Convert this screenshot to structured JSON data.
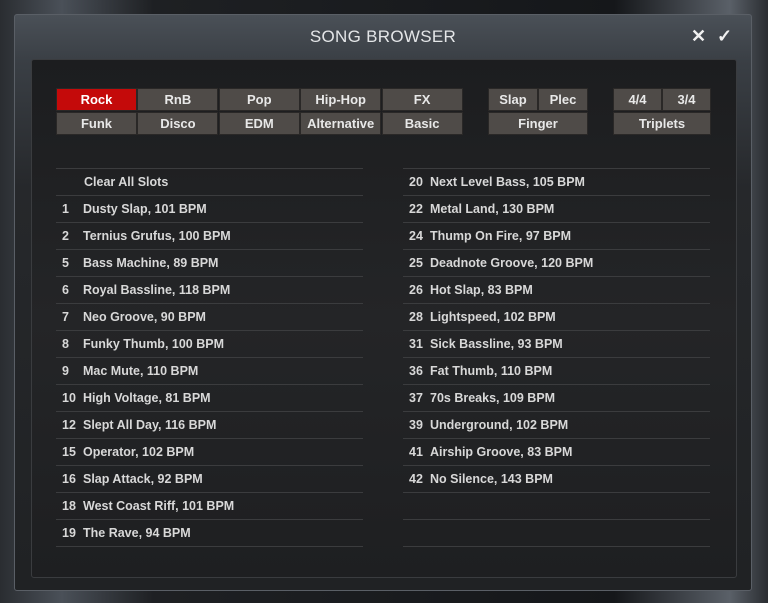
{
  "title": "SONG BROWSER",
  "icons": {
    "close": "close-icon",
    "confirm": "check-icon"
  },
  "colors": {
    "active": "#c40a0a",
    "button": "#4f4b48"
  },
  "genres": [
    {
      "label": "Rock",
      "active": true
    },
    {
      "label": "RnB"
    },
    {
      "label": "Pop"
    },
    {
      "label": "Hip-Hop"
    },
    {
      "label": "FX"
    },
    {
      "label": "Funk"
    },
    {
      "label": "Disco"
    },
    {
      "label": "EDM"
    },
    {
      "label": "Alternative"
    },
    {
      "label": "Basic"
    }
  ],
  "styles": [
    "Slap",
    "Plec",
    "Finger"
  ],
  "meters": [
    "4/4",
    "3/4",
    "Triplets"
  ],
  "left": [
    {
      "n": "",
      "t": "Clear All Slots"
    },
    {
      "n": "1",
      "t": "Dusty Slap, 101 BPM"
    },
    {
      "n": "2",
      "t": "Ternius Grufus, 100 BPM"
    },
    {
      "n": "5",
      "t": "Bass Machine, 89 BPM"
    },
    {
      "n": "6",
      "t": "Royal Bassline, 118 BPM"
    },
    {
      "n": "7",
      "t": "Neo Groove, 90 BPM"
    },
    {
      "n": "8",
      "t": "Funky Thumb, 100 BPM"
    },
    {
      "n": "9",
      "t": "Mac Mute, 110 BPM"
    },
    {
      "n": "10",
      "t": "High Voltage, 81 BPM"
    },
    {
      "n": "12",
      "t": "Slept All Day, 116 BPM"
    },
    {
      "n": "15",
      "t": "Operator, 102 BPM"
    },
    {
      "n": "16",
      "t": "Slap Attack, 92 BPM"
    },
    {
      "n": "18",
      "t": "West Coast Riff, 101 BPM"
    },
    {
      "n": "19",
      "t": "The Rave, 94 BPM"
    }
  ],
  "right": [
    {
      "n": "20",
      "t": "Next Level Bass, 105 BPM"
    },
    {
      "n": "22",
      "t": "Metal Land, 130 BPM"
    },
    {
      "n": "24",
      "t": "Thump On Fire, 97 BPM"
    },
    {
      "n": "25",
      "t": "Deadnote Groove, 120 BPM"
    },
    {
      "n": "26",
      "t": "Hot Slap, 83 BPM"
    },
    {
      "n": "28",
      "t": "Lightspeed, 102 BPM"
    },
    {
      "n": "31",
      "t": "Sick Bassline, 93 BPM"
    },
    {
      "n": "36",
      "t": "Fat Thumb, 110 BPM"
    },
    {
      "n": "37",
      "t": "70s Breaks, 109 BPM"
    },
    {
      "n": "39",
      "t": "Underground, 102 BPM"
    },
    {
      "n": "41",
      "t": "Airship Groove, 83 BPM"
    },
    {
      "n": "42",
      "t": "No Silence, 143 BPM"
    }
  ]
}
